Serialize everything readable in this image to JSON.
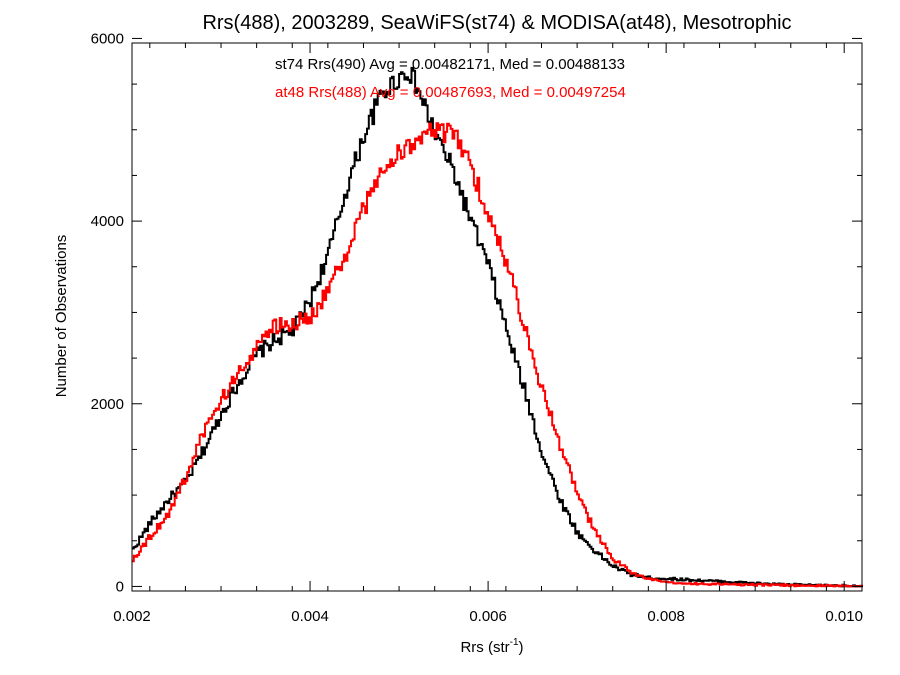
{
  "chart_data": {
    "type": "line",
    "title": "Rrs(488), 2003289, SeaWiFS(st74) & MODISA(at48), Mesotrophic",
    "xlabel": "Rrs (str",
    "xlabel_superscript": "-1",
    "xlabel_suffix": ")",
    "ylabel": "Number of Observations",
    "xlim": [
      0.002,
      0.0102
    ],
    "ylim": [
      -50,
      5950
    ],
    "x_ticks": [
      0.002,
      0.004,
      0.006,
      0.008,
      0.01
    ],
    "x_tick_labels": [
      "0.002",
      "0.004",
      "0.006",
      "0.008",
      "0.010"
    ],
    "y_ticks": [
      0,
      2000,
      4000,
      6000
    ],
    "y_tick_labels": [
      "0",
      "2000",
      "4000",
      "6000"
    ],
    "grid": false,
    "series": [
      {
        "name": "st74 Rrs(490) Avg = 0.00482171, Med = 0.00488133",
        "color": "#000000",
        "style": "step",
        "x": [
          0.002,
          0.0022,
          0.0024,
          0.0026,
          0.0028,
          0.003,
          0.0032,
          0.0034,
          0.0036,
          0.0038,
          0.004,
          0.0042,
          0.0044,
          0.0046,
          0.0048,
          0.005,
          0.0051,
          0.0052,
          0.0054,
          0.0056,
          0.0058,
          0.006,
          0.0062,
          0.0064,
          0.0066,
          0.0068,
          0.007,
          0.0072,
          0.0074,
          0.0076,
          0.0078,
          0.008,
          0.0084,
          0.0088,
          0.0092,
          0.0096,
          0.01,
          0.0102
        ],
        "y": [
          400,
          700,
          950,
          1150,
          1500,
          1900,
          2250,
          2550,
          2700,
          2800,
          3150,
          3650,
          4350,
          4950,
          5400,
          5580,
          5650,
          5450,
          4950,
          4550,
          4000,
          3500,
          2800,
          2150,
          1450,
          950,
          580,
          380,
          220,
          130,
          95,
          85,
          65,
          45,
          25,
          15,
          8,
          5
        ]
      },
      {
        "name": "at48 Rrs(488) Avg = 0.00487693, Med = 0.00497254",
        "color": "#ff0000",
        "style": "step",
        "x": [
          0.002,
          0.0022,
          0.0024,
          0.0026,
          0.0028,
          0.003,
          0.0032,
          0.0034,
          0.0036,
          0.0038,
          0.004,
          0.0042,
          0.0044,
          0.0046,
          0.0048,
          0.005,
          0.0052,
          0.0054,
          0.0056,
          0.0058,
          0.006,
          0.0062,
          0.0064,
          0.0066,
          0.0068,
          0.007,
          0.0072,
          0.0074,
          0.0076,
          0.0078,
          0.008,
          0.0084,
          0.0088,
          0.0092,
          0.0096,
          0.01,
          0.0102
        ],
        "y": [
          300,
          550,
          800,
          1200,
          1700,
          2050,
          2350,
          2650,
          2850,
          2880,
          2950,
          3250,
          3650,
          4150,
          4550,
          4750,
          4900,
          4980,
          4950,
          4600,
          4050,
          3550,
          2850,
          2150,
          1550,
          1000,
          580,
          300,
          150,
          80,
          40,
          28,
          20,
          15,
          10,
          5,
          3
        ]
      }
    ]
  }
}
